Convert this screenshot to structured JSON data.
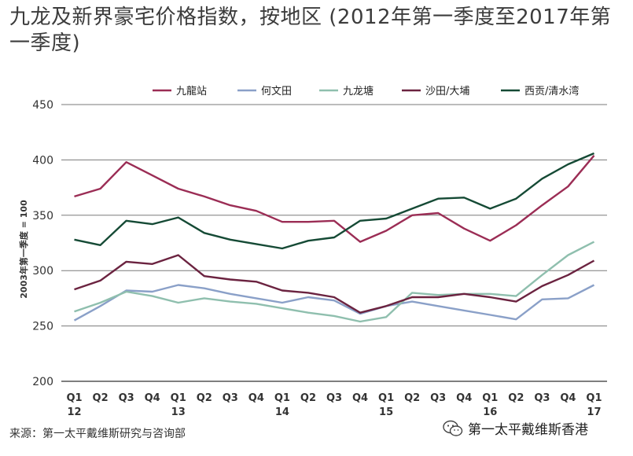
{
  "chart_data": {
    "type": "line",
    "title": "九龙及新界豪宅价格指数，按地区 (2012年第一季度至2017年第一季度)",
    "ylabel": "2003年第一季度 = 100",
    "xlabel": "",
    "ylim": [
      200,
      450
    ],
    "yticks": [
      200,
      250,
      300,
      350,
      400,
      450
    ],
    "grid": true,
    "legend_position": "top",
    "categories": [
      "Q1",
      "Q2",
      "Q3",
      "Q4",
      "Q1",
      "Q2",
      "Q3",
      "Q4",
      "Q1",
      "Q2",
      "Q3",
      "Q4",
      "Q1",
      "Q2",
      "Q3",
      "Q4",
      "Q1",
      "Q2",
      "Q3",
      "Q4",
      "Q1"
    ],
    "year_labels": [
      {
        "index": 0,
        "label": "12"
      },
      {
        "index": 4,
        "label": "13"
      },
      {
        "index": 8,
        "label": "14"
      },
      {
        "index": 12,
        "label": "15"
      },
      {
        "index": 16,
        "label": "16"
      },
      {
        "index": 20,
        "label": "17"
      }
    ],
    "series": [
      {
        "name": "九龍站",
        "color": "#9b2d55",
        "values": [
          367,
          374,
          398,
          386,
          374,
          367,
          359,
          354,
          344,
          344,
          345,
          326,
          336,
          350,
          352,
          338,
          327,
          341,
          359,
          376,
          404
        ]
      },
      {
        "name": "何文田",
        "color": "#8aa0c8",
        "values": [
          255,
          268,
          282,
          281,
          287,
          284,
          279,
          275,
          271,
          276,
          273,
          261,
          268,
          272,
          268,
          264,
          260,
          256,
          274,
          275,
          287
        ]
      },
      {
        "name": "九龙塘",
        "color": "#8fbfae",
        "values": [
          263,
          271,
          281,
          277,
          271,
          275,
          272,
          270,
          266,
          262,
          259,
          254,
          258,
          280,
          278,
          279,
          279,
          277,
          296,
          314,
          326
        ]
      },
      {
        "name": "沙田/大埔",
        "color": "#6b2340",
        "values": [
          283,
          291,
          308,
          306,
          314,
          295,
          292,
          290,
          282,
          280,
          276,
          262,
          268,
          276,
          276,
          279,
          276,
          272,
          286,
          296,
          309
        ]
      },
      {
        "name": "西贡/清水湾",
        "color": "#154a35",
        "values": [
          328,
          323,
          345,
          342,
          348,
          334,
          328,
          324,
          320,
          327,
          330,
          345,
          347,
          356,
          365,
          366,
          356,
          365,
          383,
          396,
          406
        ]
      }
    ]
  },
  "footer": {
    "source": "来源：第一太平戴维斯研究与咨询部",
    "watermark": "第一太平戴维斯香港",
    "watermark_icon": "wechat-icon"
  }
}
